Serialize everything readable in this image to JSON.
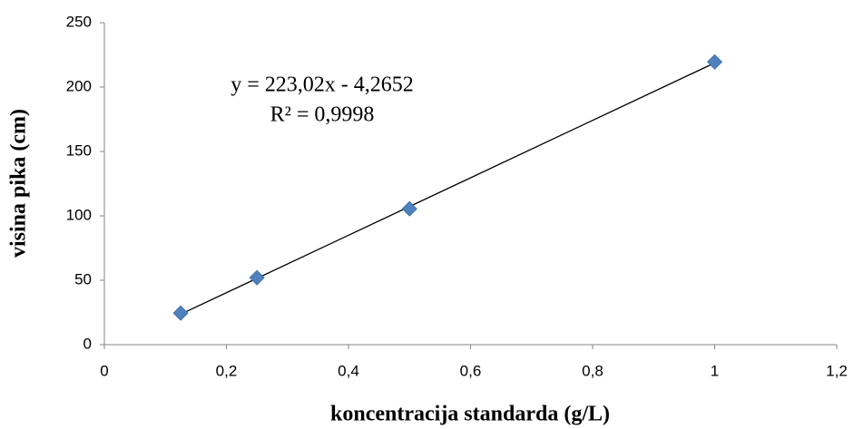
{
  "chart_data": {
    "type": "scatter",
    "x_label": "koncentracija standarda (g/L)",
    "y_label": "visina pika (cm)",
    "annotations": [
      "y = 223,02x - 4,2652",
      "R² = 0,9998"
    ],
    "series": [
      {
        "color": "#4f81bd",
        "x": [
          0.125,
          0.25,
          0.5,
          1
        ],
        "values": [
          24.5,
          52,
          105.5,
          219.5
        ]
      }
    ],
    "trendline": {
      "slope": 223.02,
      "intercept": -4.2652,
      "color": "#000000"
    },
    "xlim": [
      0,
      1.2
    ],
    "xticks": [
      0,
      {
        "value": 0.2,
        "label": "0,2"
      },
      {
        "value": 0.4,
        "label": "0,4"
      },
      {
        "value": 0.6,
        "label": "0,6"
      },
      {
        "value": 0.8,
        "label": "0,8"
      },
      1,
      {
        "value": 1.2,
        "label": "1,2"
      }
    ],
    "ylim": [
      0,
      250
    ],
    "yticks": [
      0,
      50,
      100,
      150,
      200,
      250
    ],
    "grid": false
  }
}
